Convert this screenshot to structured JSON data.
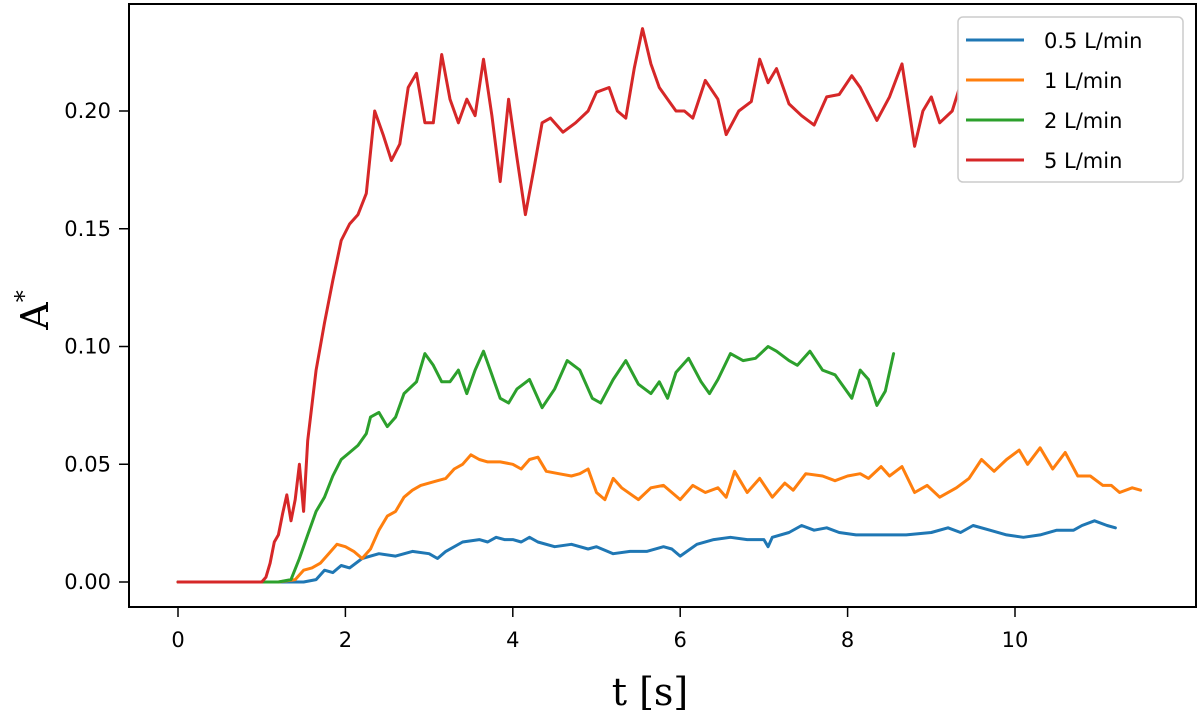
{
  "chart_data": {
    "type": "line",
    "title": "",
    "xlabel": "t [s]",
    "ylabel": "A*",
    "xlim": [
      -0.55,
      11.6
    ],
    "ylim": [
      -0.011,
      0.2455
    ],
    "xticks": [
      0,
      2,
      4,
      6,
      8,
      10
    ],
    "xtick_labels": [
      "0",
      "2",
      "4",
      "6",
      "8",
      "10"
    ],
    "yticks": [
      0.0,
      0.05,
      0.1,
      0.15,
      0.2
    ],
    "ytick_labels": [
      "0.00",
      "0.05",
      "0.10",
      "0.15",
      "0.20"
    ],
    "grid": false,
    "legend_position": "upper right",
    "series": [
      {
        "name": "0.5 L/min",
        "color": "#1f77b4",
        "points": [
          [
            0,
            0
          ],
          [
            1.0,
            0
          ],
          [
            1.5,
            0
          ],
          [
            1.65,
            0.001
          ],
          [
            1.75,
            0.005
          ],
          [
            1.85,
            0.004
          ],
          [
            1.95,
            0.007
          ],
          [
            2.05,
            0.006
          ],
          [
            2.2,
            0.01
          ],
          [
            2.4,
            0.012
          ],
          [
            2.6,
            0.011
          ],
          [
            2.8,
            0.013
          ],
          [
            3.0,
            0.012
          ],
          [
            3.1,
            0.01
          ],
          [
            3.2,
            0.013
          ],
          [
            3.4,
            0.017
          ],
          [
            3.6,
            0.018
          ],
          [
            3.7,
            0.017
          ],
          [
            3.8,
            0.019
          ],
          [
            3.9,
            0.018
          ],
          [
            4.0,
            0.018
          ],
          [
            4.1,
            0.017
          ],
          [
            4.2,
            0.019
          ],
          [
            4.3,
            0.017
          ],
          [
            4.5,
            0.015
          ],
          [
            4.7,
            0.016
          ],
          [
            4.9,
            0.014
          ],
          [
            5.0,
            0.015
          ],
          [
            5.2,
            0.012
          ],
          [
            5.4,
            0.013
          ],
          [
            5.6,
            0.013
          ],
          [
            5.8,
            0.015
          ],
          [
            5.9,
            0.014
          ],
          [
            6.0,
            0.011
          ],
          [
            6.2,
            0.016
          ],
          [
            6.4,
            0.018
          ],
          [
            6.6,
            0.019
          ],
          [
            6.8,
            0.018
          ],
          [
            7.0,
            0.018
          ],
          [
            7.05,
            0.015
          ],
          [
            7.1,
            0.019
          ],
          [
            7.3,
            0.021
          ],
          [
            7.45,
            0.024
          ],
          [
            7.6,
            0.022
          ],
          [
            7.75,
            0.023
          ],
          [
            7.9,
            0.021
          ],
          [
            8.1,
            0.02
          ],
          [
            8.4,
            0.02
          ],
          [
            8.7,
            0.02
          ],
          [
            9.0,
            0.021
          ],
          [
            9.2,
            0.023
          ],
          [
            9.35,
            0.021
          ],
          [
            9.5,
            0.024
          ],
          [
            9.7,
            0.022
          ],
          [
            9.9,
            0.02
          ],
          [
            10.1,
            0.019
          ],
          [
            10.3,
            0.02
          ],
          [
            10.5,
            0.022
          ],
          [
            10.7,
            0.022
          ],
          [
            10.8,
            0.024
          ],
          [
            10.95,
            0.026
          ],
          [
            11.1,
            0.024
          ],
          [
            11.2,
            0.023
          ]
        ]
      },
      {
        "name": "1 L/min",
        "color": "#ff7f0e",
        "points": [
          [
            0,
            0
          ],
          [
            1.2,
            0
          ],
          [
            1.4,
            0.001
          ],
          [
            1.5,
            0.005
          ],
          [
            1.6,
            0.006
          ],
          [
            1.7,
            0.008
          ],
          [
            1.8,
            0.012
          ],
          [
            1.9,
            0.016
          ],
          [
            2.0,
            0.015
          ],
          [
            2.1,
            0.013
          ],
          [
            2.2,
            0.01
          ],
          [
            2.3,
            0.014
          ],
          [
            2.4,
            0.022
          ],
          [
            2.5,
            0.028
          ],
          [
            2.6,
            0.03
          ],
          [
            2.7,
            0.036
          ],
          [
            2.8,
            0.039
          ],
          [
            2.9,
            0.041
          ],
          [
            3.0,
            0.042
          ],
          [
            3.1,
            0.043
          ],
          [
            3.2,
            0.044
          ],
          [
            3.3,
            0.048
          ],
          [
            3.4,
            0.05
          ],
          [
            3.5,
            0.054
          ],
          [
            3.6,
            0.052
          ],
          [
            3.7,
            0.051
          ],
          [
            3.85,
            0.051
          ],
          [
            4.0,
            0.05
          ],
          [
            4.1,
            0.048
          ],
          [
            4.2,
            0.052
          ],
          [
            4.3,
            0.053
          ],
          [
            4.4,
            0.047
          ],
          [
            4.55,
            0.046
          ],
          [
            4.7,
            0.045
          ],
          [
            4.8,
            0.046
          ],
          [
            4.9,
            0.048
          ],
          [
            5.0,
            0.038
          ],
          [
            5.1,
            0.035
          ],
          [
            5.2,
            0.044
          ],
          [
            5.3,
            0.04
          ],
          [
            5.5,
            0.035
          ],
          [
            5.65,
            0.04
          ],
          [
            5.8,
            0.041
          ],
          [
            6.0,
            0.035
          ],
          [
            6.15,
            0.041
          ],
          [
            6.3,
            0.038
          ],
          [
            6.45,
            0.04
          ],
          [
            6.55,
            0.036
          ],
          [
            6.65,
            0.047
          ],
          [
            6.8,
            0.038
          ],
          [
            6.95,
            0.044
          ],
          [
            7.1,
            0.036
          ],
          [
            7.25,
            0.042
          ],
          [
            7.35,
            0.039
          ],
          [
            7.5,
            0.046
          ],
          [
            7.7,
            0.045
          ],
          [
            7.85,
            0.043
          ],
          [
            8.0,
            0.045
          ],
          [
            8.15,
            0.046
          ],
          [
            8.25,
            0.044
          ],
          [
            8.4,
            0.049
          ],
          [
            8.5,
            0.045
          ],
          [
            8.65,
            0.049
          ],
          [
            8.8,
            0.038
          ],
          [
            8.95,
            0.041
          ],
          [
            9.1,
            0.036
          ],
          [
            9.3,
            0.04
          ],
          [
            9.45,
            0.044
          ],
          [
            9.6,
            0.052
          ],
          [
            9.75,
            0.047
          ],
          [
            9.9,
            0.052
          ],
          [
            10.05,
            0.056
          ],
          [
            10.15,
            0.05
          ],
          [
            10.3,
            0.057
          ],
          [
            10.45,
            0.048
          ],
          [
            10.6,
            0.055
          ],
          [
            10.75,
            0.045
          ],
          [
            10.9,
            0.045
          ],
          [
            11.05,
            0.041
          ],
          [
            11.15,
            0.041
          ],
          [
            11.25,
            0.038
          ],
          [
            11.4,
            0.04
          ],
          [
            11.5,
            0.039
          ]
        ]
      },
      {
        "name": "2 L/min",
        "color": "#2ca02c",
        "points": [
          [
            0,
            0
          ],
          [
            1.2,
            0
          ],
          [
            1.35,
            0.001
          ],
          [
            1.45,
            0.01
          ],
          [
            1.55,
            0.02
          ],
          [
            1.65,
            0.03
          ],
          [
            1.75,
            0.036
          ],
          [
            1.85,
            0.045
          ],
          [
            1.95,
            0.052
          ],
          [
            2.05,
            0.055
          ],
          [
            2.15,
            0.058
          ],
          [
            2.25,
            0.063
          ],
          [
            2.3,
            0.07
          ],
          [
            2.4,
            0.072
          ],
          [
            2.5,
            0.066
          ],
          [
            2.6,
            0.07
          ],
          [
            2.7,
            0.08
          ],
          [
            2.85,
            0.085
          ],
          [
            2.95,
            0.097
          ],
          [
            3.05,
            0.092
          ],
          [
            3.15,
            0.085
          ],
          [
            3.25,
            0.085
          ],
          [
            3.35,
            0.09
          ],
          [
            3.45,
            0.08
          ],
          [
            3.55,
            0.09
          ],
          [
            3.65,
            0.098
          ],
          [
            3.75,
            0.088
          ],
          [
            3.85,
            0.078
          ],
          [
            3.95,
            0.076
          ],
          [
            4.05,
            0.082
          ],
          [
            4.2,
            0.086
          ],
          [
            4.35,
            0.074
          ],
          [
            4.5,
            0.082
          ],
          [
            4.65,
            0.094
          ],
          [
            4.8,
            0.09
          ],
          [
            4.95,
            0.078
          ],
          [
            5.05,
            0.076
          ],
          [
            5.2,
            0.086
          ],
          [
            5.35,
            0.094
          ],
          [
            5.5,
            0.084
          ],
          [
            5.65,
            0.08
          ],
          [
            5.75,
            0.085
          ],
          [
            5.85,
            0.078
          ],
          [
            5.95,
            0.089
          ],
          [
            6.1,
            0.095
          ],
          [
            6.25,
            0.085
          ],
          [
            6.35,
            0.08
          ],
          [
            6.45,
            0.086
          ],
          [
            6.6,
            0.097
          ],
          [
            6.75,
            0.094
          ],
          [
            6.9,
            0.095
          ],
          [
            7.05,
            0.1
          ],
          [
            7.15,
            0.098
          ],
          [
            7.3,
            0.094
          ],
          [
            7.4,
            0.092
          ],
          [
            7.55,
            0.098
          ],
          [
            7.7,
            0.09
          ],
          [
            7.85,
            0.088
          ],
          [
            7.95,
            0.083
          ],
          [
            8.05,
            0.078
          ],
          [
            8.15,
            0.09
          ],
          [
            8.25,
            0.086
          ],
          [
            8.35,
            0.075
          ],
          [
            8.45,
            0.081
          ],
          [
            8.55,
            0.097
          ]
        ]
      },
      {
        "name": "5 L/min",
        "color": "#d62728",
        "points": [
          [
            0,
            0
          ],
          [
            1.0,
            0
          ],
          [
            1.05,
            0.002
          ],
          [
            1.1,
            0.008
          ],
          [
            1.15,
            0.017
          ],
          [
            1.2,
            0.02
          ],
          [
            1.25,
            0.029
          ],
          [
            1.3,
            0.037
          ],
          [
            1.35,
            0.026
          ],
          [
            1.4,
            0.035
          ],
          [
            1.45,
            0.05
          ],
          [
            1.5,
            0.03
          ],
          [
            1.55,
            0.06
          ],
          [
            1.65,
            0.09
          ],
          [
            1.75,
            0.11
          ],
          [
            1.85,
            0.128
          ],
          [
            1.95,
            0.145
          ],
          [
            2.05,
            0.152
          ],
          [
            2.15,
            0.156
          ],
          [
            2.25,
            0.165
          ],
          [
            2.35,
            0.2
          ],
          [
            2.45,
            0.19
          ],
          [
            2.55,
            0.179
          ],
          [
            2.65,
            0.186
          ],
          [
            2.75,
            0.21
          ],
          [
            2.85,
            0.216
          ],
          [
            2.95,
            0.195
          ],
          [
            3.05,
            0.195
          ],
          [
            3.15,
            0.224
          ],
          [
            3.25,
            0.205
          ],
          [
            3.35,
            0.195
          ],
          [
            3.45,
            0.205
          ],
          [
            3.55,
            0.198
          ],
          [
            3.65,
            0.222
          ],
          [
            3.75,
            0.198
          ],
          [
            3.85,
            0.17
          ],
          [
            3.95,
            0.205
          ],
          [
            4.05,
            0.18
          ],
          [
            4.15,
            0.156
          ],
          [
            4.25,
            0.175
          ],
          [
            4.35,
            0.195
          ],
          [
            4.45,
            0.197
          ],
          [
            4.6,
            0.191
          ],
          [
            4.75,
            0.195
          ],
          [
            4.9,
            0.2
          ],
          [
            5.0,
            0.208
          ],
          [
            5.15,
            0.21
          ],
          [
            5.25,
            0.2
          ],
          [
            5.35,
            0.197
          ],
          [
            5.45,
            0.218
          ],
          [
            5.55,
            0.235
          ],
          [
            5.65,
            0.22
          ],
          [
            5.75,
            0.21
          ],
          [
            5.85,
            0.205
          ],
          [
            5.95,
            0.2
          ],
          [
            6.05,
            0.2
          ],
          [
            6.15,
            0.197
          ],
          [
            6.3,
            0.213
          ],
          [
            6.45,
            0.205
          ],
          [
            6.55,
            0.19
          ],
          [
            6.7,
            0.2
          ],
          [
            6.85,
            0.204
          ],
          [
            6.95,
            0.222
          ],
          [
            7.05,
            0.212
          ],
          [
            7.15,
            0.218
          ],
          [
            7.3,
            0.203
          ],
          [
            7.45,
            0.198
          ],
          [
            7.6,
            0.194
          ],
          [
            7.75,
            0.206
          ],
          [
            7.9,
            0.207
          ],
          [
            8.05,
            0.215
          ],
          [
            8.15,
            0.21
          ],
          [
            8.35,
            0.196
          ],
          [
            8.5,
            0.206
          ],
          [
            8.65,
            0.22
          ],
          [
            8.8,
            0.185
          ],
          [
            8.9,
            0.2
          ],
          [
            9.0,
            0.206
          ],
          [
            9.1,
            0.195
          ],
          [
            9.25,
            0.2
          ],
          [
            9.4,
            0.217
          ],
          [
            9.55,
            0.225
          ],
          [
            9.7,
            0.2
          ],
          [
            9.85,
            0.186
          ],
          [
            9.95,
            0.188
          ],
          [
            10.05,
            0.18
          ],
          [
            10.15,
            0.19
          ],
          [
            10.3,
            0.209
          ],
          [
            10.4,
            0.21
          ]
        ]
      }
    ]
  },
  "legend": {
    "items": [
      {
        "label": "0.5 L/min",
        "color": "#1f77b4"
      },
      {
        "label": "1 L/min",
        "color": "#ff7f0e"
      },
      {
        "label": "2 L/min",
        "color": "#2ca02c"
      },
      {
        "label": "5 L/min",
        "color": "#d62728"
      }
    ]
  },
  "axes": {
    "xlabel_main": "t",
    "xlabel_unit": "[s]",
    "ylabel_main": "A",
    "ylabel_sup": "*"
  }
}
